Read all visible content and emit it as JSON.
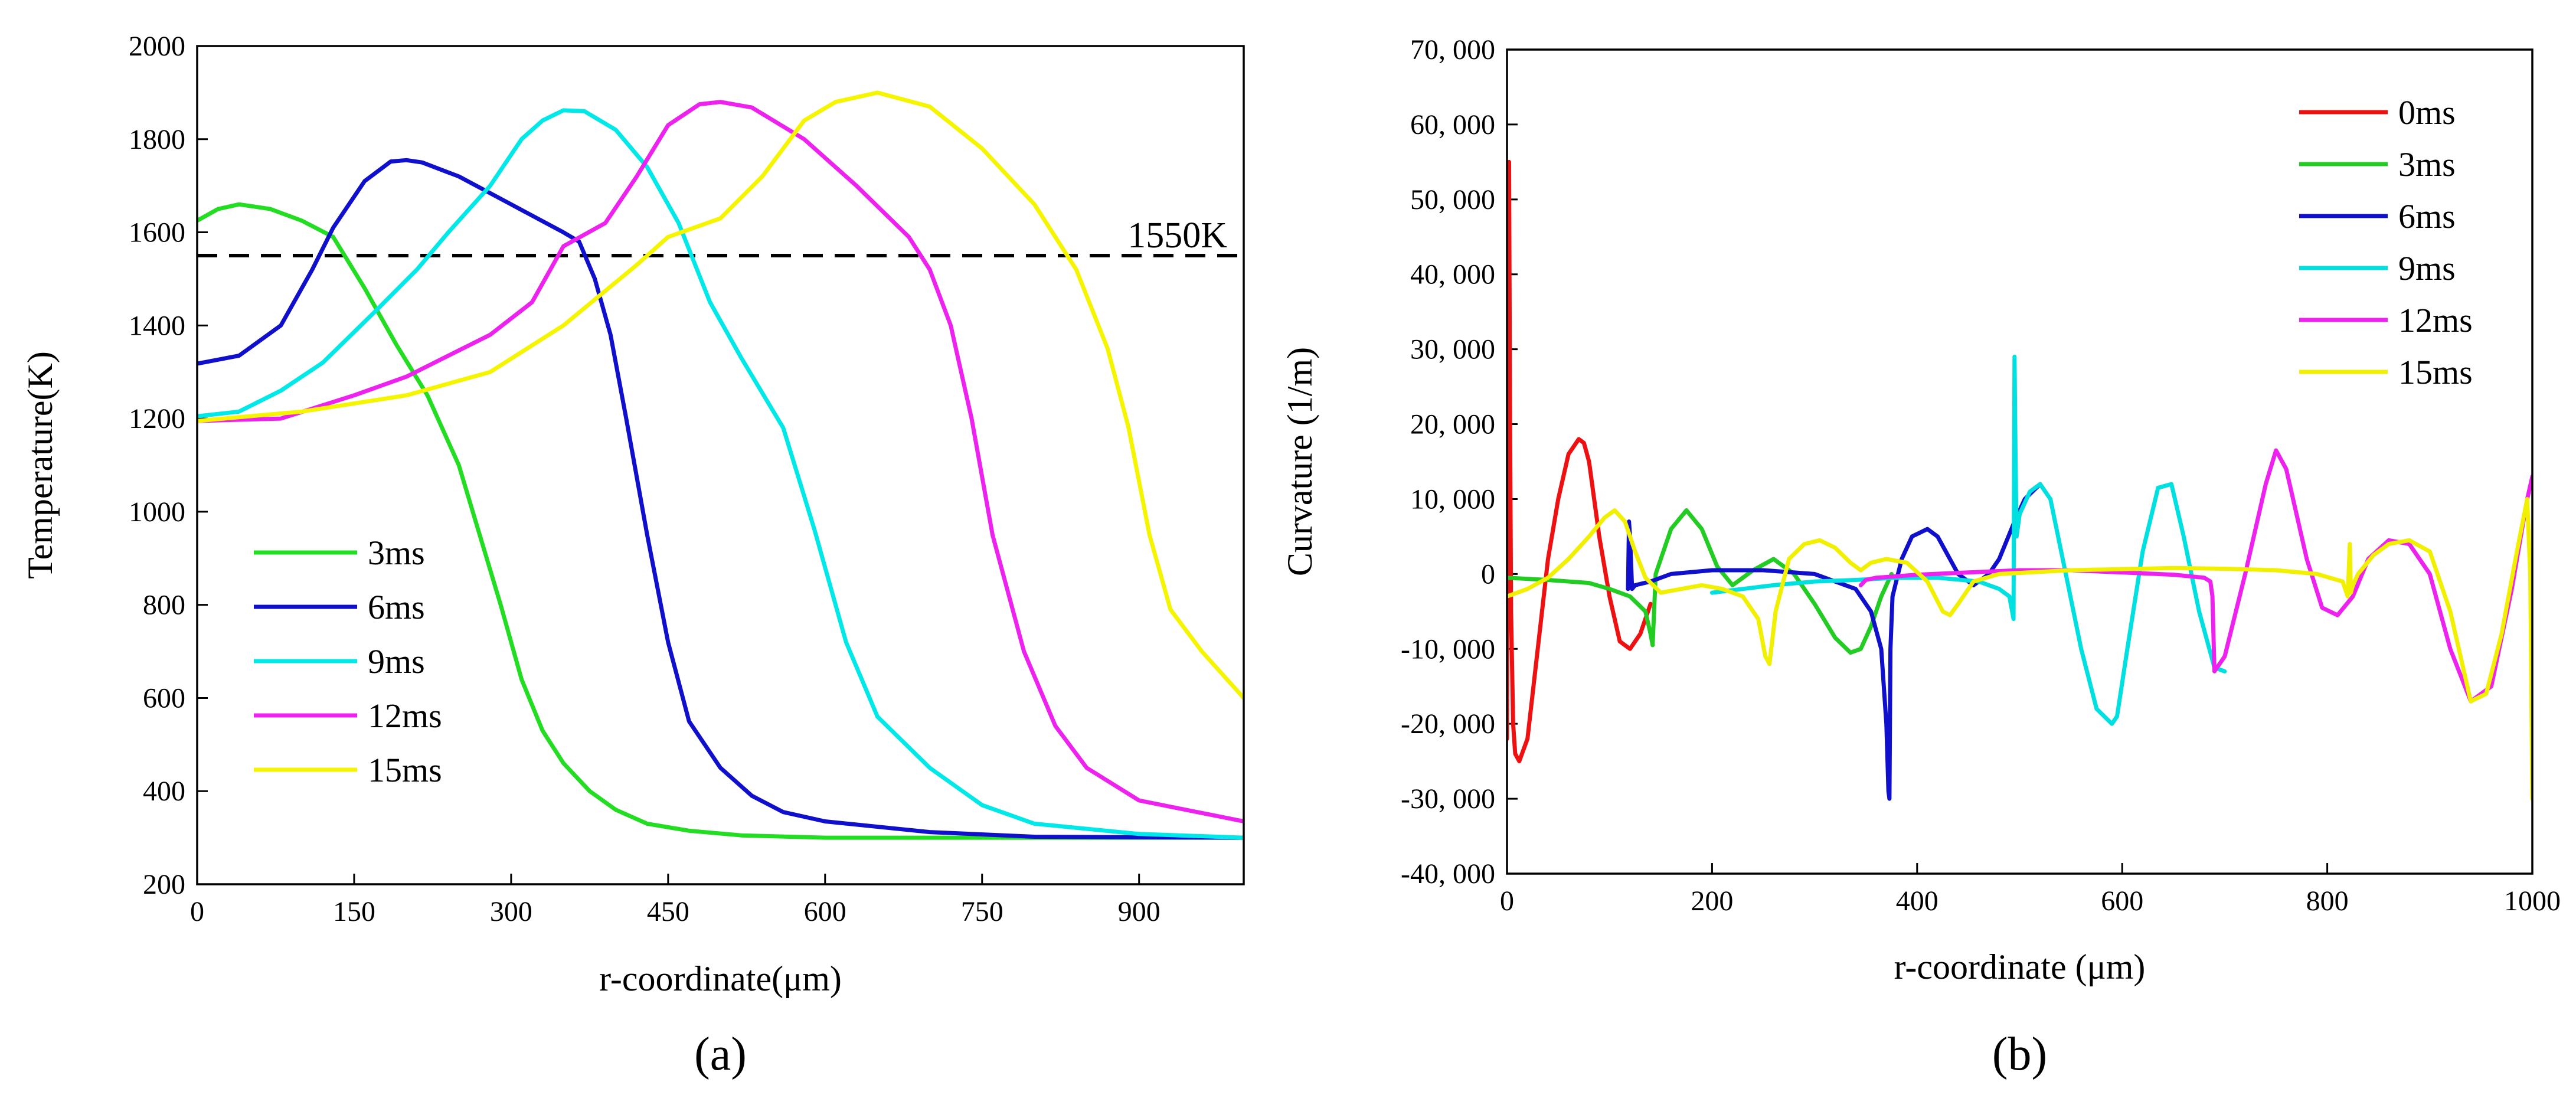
{
  "chart_data": [
    {
      "panel_label": "(a)",
      "type": "line",
      "xlabel": "r-coordinate(μm)",
      "ylabel": "Temperature(K)",
      "xlim": [
        0,
        1000
      ],
      "ylim": [
        200,
        2000
      ],
      "xticks": [
        0,
        150,
        300,
        450,
        600,
        750,
        900
      ],
      "yticks": [
        200,
        400,
        600,
        800,
        1000,
        1200,
        1400,
        1600,
        1800,
        2000
      ],
      "grid": false,
      "legend_position": "bottom-left",
      "reference_line": {
        "y": 1550,
        "label": "1550K",
        "style": "dashed"
      },
      "series": [
        {
          "name": "3ms",
          "color": "#22dd22",
          "x": [
            0,
            20,
            40,
            70,
            100,
            130,
            160,
            190,
            220,
            250,
            270,
            290,
            310,
            330,
            350,
            375,
            400,
            430,
            470,
            520,
            600,
            700,
            800,
            1000
          ],
          "y": [
            1625,
            1650,
            1660,
            1650,
            1625,
            1590,
            1480,
            1360,
            1250,
            1100,
            950,
            800,
            640,
            530,
            460,
            400,
            360,
            330,
            315,
            305,
            300,
            300,
            300,
            300
          ]
        },
        {
          "name": "6ms",
          "color": "#1010cc",
          "x": [
            0,
            40,
            80,
            110,
            130,
            160,
            185,
            200,
            215,
            250,
            300,
            350,
            365,
            380,
            395,
            410,
            430,
            450,
            470,
            500,
            530,
            560,
            600,
            700,
            800,
            1000
          ],
          "y": [
            1318,
            1335,
            1400,
            1520,
            1610,
            1710,
            1752,
            1755,
            1750,
            1720,
            1660,
            1600,
            1580,
            1500,
            1380,
            1200,
            950,
            720,
            550,
            450,
            390,
            355,
            335,
            312,
            302,
            300
          ]
        },
        {
          "name": "9ms",
          "color": "#00e8e8",
          "x": [
            0,
            40,
            80,
            120,
            170,
            210,
            240,
            280,
            310,
            330,
            350,
            370,
            400,
            430,
            460,
            490,
            520,
            560,
            590,
            620,
            650,
            700,
            750,
            800,
            900,
            1000
          ],
          "y": [
            1205,
            1215,
            1260,
            1320,
            1430,
            1520,
            1600,
            1700,
            1800,
            1840,
            1862,
            1860,
            1820,
            1740,
            1620,
            1450,
            1330,
            1180,
            960,
            720,
            560,
            450,
            370,
            330,
            308,
            300
          ]
        },
        {
          "name": "12ms",
          "color": "#ee22ee",
          "x": [
            0,
            80,
            150,
            200,
            280,
            320,
            350,
            390,
            420,
            450,
            480,
            500,
            530,
            580,
            630,
            680,
            700,
            720,
            740,
            760,
            790,
            820,
            850,
            900,
            1000
          ],
          "y": [
            1195,
            1200,
            1250,
            1290,
            1380,
            1450,
            1570,
            1620,
            1720,
            1830,
            1875,
            1880,
            1868,
            1800,
            1700,
            1590,
            1520,
            1400,
            1200,
            950,
            700,
            540,
            450,
            380,
            335
          ]
        },
        {
          "name": "15ms",
          "color": "#f5f500",
          "x": [
            0,
            100,
            200,
            280,
            350,
            420,
            450,
            500,
            540,
            580,
            610,
            650,
            700,
            750,
            800,
            840,
            870,
            890,
            910,
            930,
            960,
            1000
          ],
          "y": [
            1195,
            1215,
            1250,
            1300,
            1400,
            1530,
            1590,
            1630,
            1720,
            1840,
            1880,
            1900,
            1870,
            1780,
            1660,
            1520,
            1350,
            1180,
            950,
            790,
            700,
            600
          ]
        }
      ]
    },
    {
      "panel_label": "(b)",
      "type": "line",
      "xlabel": "r-coordinate (μm)",
      "ylabel": "Curvature (1/m)",
      "xlim": [
        0,
        1000
      ],
      "ylim": [
        -40000,
        70000
      ],
      "xticks": [
        0,
        200,
        400,
        600,
        800,
        1000
      ],
      "yticks": [
        -40000,
        -30000,
        -20000,
        -10000,
        0,
        10000,
        20000,
        30000,
        40000,
        50000,
        60000,
        70000
      ],
      "ytick_labels": [
        "-40, 000",
        "-30, 000",
        "-20, 000",
        "-10, 000",
        "0",
        "10, 000",
        "20, 000",
        "30, 000",
        "40, 000",
        "50, 000",
        "60, 000",
        "70, 000"
      ],
      "grid": false,
      "legend_position": "top-right",
      "series": [
        {
          "name": "0ms",
          "color": "#ee1111",
          "x": [
            0,
            1,
            2,
            3,
            4,
            6,
            8,
            12,
            20,
            30,
            40,
            50,
            60,
            70,
            75,
            80,
            90,
            100,
            110,
            120,
            130,
            140
          ],
          "y": [
            -22000,
            40000,
            55000,
            20000,
            -5000,
            -20000,
            -24000,
            -25000,
            -22000,
            -10000,
            2000,
            10000,
            16000,
            18000,
            17500,
            15000,
            5000,
            -3000,
            -9000,
            -10000,
            -8000,
            -4000
          ]
        },
        {
          "name": "3ms",
          "color": "#22cc22",
          "x": [
            0,
            40,
            80,
            100,
            120,
            135,
            140,
            142,
            145,
            160,
            175,
            190,
            205,
            220,
            240,
            260,
            280,
            300,
            320,
            335,
            345,
            355,
            365,
            375
          ],
          "y": [
            -500,
            -800,
            -1200,
            -2000,
            -3000,
            -5000,
            -8000,
            -9500,
            0,
            6000,
            8500,
            6000,
            1000,
            -1500,
            500,
            2000,
            0,
            -4000,
            -8500,
            -10500,
            -10000,
            -7000,
            -3000,
            0
          ]
        },
        {
          "name": "6ms",
          "color": "#1010cc",
          "x": [
            118,
            119,
            120,
            122,
            125,
            140,
            160,
            200,
            250,
            300,
            340,
            355,
            365,
            370,
            372,
            373,
            374,
            376,
            385,
            395,
            410,
            420,
            440,
            455,
            470,
            480,
            495,
            505,
            520
          ],
          "y": [
            -2000,
            7000,
            5000,
            -2000,
            -1500,
            -1000,
            0,
            500,
            500,
            0,
            -2000,
            -5000,
            -10000,
            -20000,
            -29000,
            -30000,
            -10000,
            -3000,
            2000,
            5000,
            6000,
            5000,
            0,
            -1500,
            0,
            2000,
            7000,
            10000,
            12000
          ]
        },
        {
          "name": "9ms",
          "color": "#00e0e0",
          "x": [
            200,
            230,
            260,
            300,
            340,
            380,
            420,
            460,
            480,
            490,
            494,
            495,
            496,
            497,
            500,
            510,
            520,
            530,
            545,
            560,
            575,
            590,
            595,
            605,
            620,
            635,
            648,
            660,
            675,
            690,
            700
          ],
          "y": [
            -2500,
            -2000,
            -1500,
            -1000,
            -800,
            -500,
            -500,
            -1000,
            -2000,
            -3000,
            -6000,
            29000,
            15000,
            5000,
            8000,
            11000,
            12000,
            10000,
            0,
            -10000,
            -18000,
            -20000,
            -19000,
            -10000,
            3000,
            11500,
            12000,
            5000,
            -5000,
            -12500,
            -13000
          ]
        },
        {
          "name": "12ms",
          "color": "#ee22ee",
          "x": [
            345,
            350,
            360,
            380,
            400,
            450,
            500,
            550,
            600,
            650,
            680,
            686,
            688,
            690,
            700,
            720,
            740,
            750,
            760,
            780,
            795,
            810,
            825,
            840,
            860,
            880,
            900,
            920,
            940,
            960,
            980,
            995,
            1000
          ],
          "y": [
            -1500,
            -800,
            -500,
            -300,
            -100,
            200,
            500,
            500,
            200,
            -100,
            -500,
            -1000,
            -3000,
            -13000,
            -11000,
            0,
            12000,
            16500,
            14000,
            2000,
            -4500,
            -5500,
            -3000,
            2000,
            4500,
            4000,
            0,
            -10000,
            -17000,
            -15000,
            -2000,
            10000,
            13000
          ]
        },
        {
          "name": "15ms",
          "color": "#f0f000",
          "x": [
            0,
            20,
            40,
            60,
            80,
            95,
            105,
            115,
            125,
            135,
            150,
            170,
            190,
            210,
            230,
            245,
            252,
            256,
            262,
            275,
            290,
            305,
            320,
            335,
            345,
            355,
            370,
            390,
            410,
            425,
            432,
            440,
            455,
            480,
            550,
            650,
            700,
            750,
            790,
            815,
            820,
            822,
            823,
            825,
            830,
            845,
            860,
            880,
            900,
            920,
            940,
            955,
            970,
            985,
            995,
            998,
            1000
          ],
          "y": [
            -3000,
            -2000,
            -500,
            2000,
            5000,
            7500,
            8500,
            7000,
            3000,
            -500,
            -2500,
            -2000,
            -1500,
            -2000,
            -3000,
            -6000,
            -11000,
            -12000,
            -5000,
            2000,
            4000,
            4500,
            3500,
            1500,
            500,
            1500,
            2000,
            1500,
            -1000,
            -5000,
            -5500,
            -4000,
            -1000,
            0,
            500,
            800,
            700,
            500,
            0,
            -1000,
            -3000,
            4000,
            -2500,
            -1500,
            0,
            2500,
            4000,
            4500,
            3000,
            -5000,
            -17000,
            -16000,
            -8000,
            3000,
            10000,
            0,
            -30000
          ]
        }
      ]
    }
  ]
}
